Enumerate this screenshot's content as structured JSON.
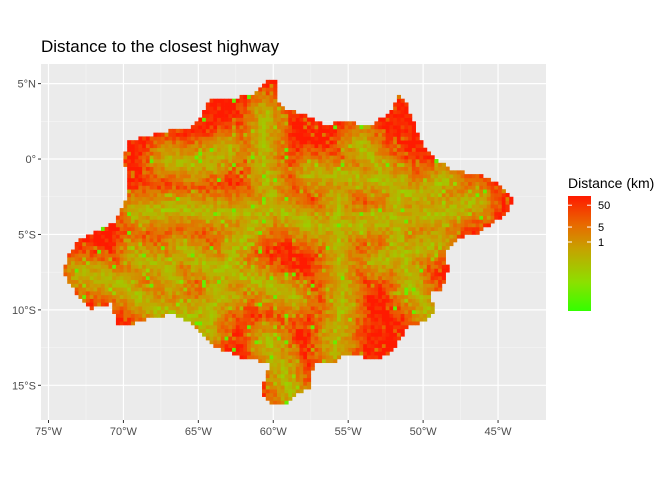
{
  "map": {
    "title": "Distance to the closest highway",
    "x_axis": {
      "ticks": [
        {
          "value": -75,
          "label": "75°W"
        },
        {
          "value": -70,
          "label": "70°W"
        },
        {
          "value": -65,
          "label": "65°W"
        },
        {
          "value": -60,
          "label": "60°W"
        },
        {
          "value": -55,
          "label": "55°W"
        },
        {
          "value": -50,
          "label": "50°W"
        },
        {
          "value": -45,
          "label": "45°W"
        }
      ],
      "range": [
        -75.5,
        -41.8
      ]
    },
    "y_axis": {
      "ticks": [
        {
          "value": 5,
          "label": "5°N"
        },
        {
          "value": 0,
          "label": "0°"
        },
        {
          "value": -5,
          "label": "5°S"
        },
        {
          "value": -10,
          "label": "10°S"
        },
        {
          "value": -15,
          "label": "15°S"
        }
      ],
      "range": [
        -17.3,
        6.3
      ]
    },
    "legend": {
      "title": "Distance (km)",
      "ticks": [
        {
          "label": "50",
          "fraction": 0.92
        },
        {
          "label": "5",
          "fraction": 0.73
        },
        {
          "label": "1",
          "fraction": 0.6
        }
      ],
      "colors": [
        "#FF1A00",
        "#E86A00",
        "#C8A000",
        "#8CE000",
        "#33FF00"
      ]
    },
    "colors": {
      "panel": "#EBEBEB",
      "grid_major": "#FFFFFF",
      "near": "#33FF00",
      "far": "#FF1A00"
    }
  }
}
